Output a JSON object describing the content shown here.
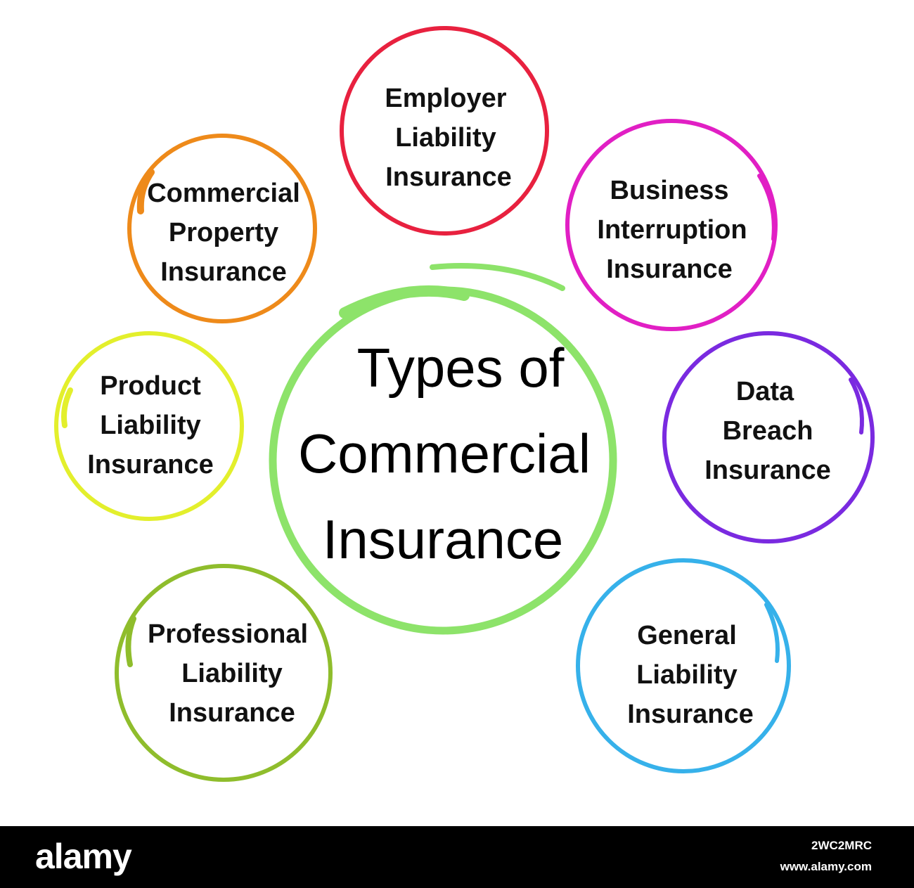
{
  "center": {
    "line1": "Types of",
    "line2": "Commercial",
    "line3": "Insurance",
    "color": "#8de36a"
  },
  "nodes": [
    {
      "id": "employer-liability",
      "lines": [
        "Employer",
        "Liability",
        "Insurance"
      ],
      "color": "#e8213f"
    },
    {
      "id": "business-interruption",
      "lines": [
        "Business",
        "Interruption",
        "Insurance"
      ],
      "color": "#e11fc4"
    },
    {
      "id": "data-breach",
      "lines": [
        "Data",
        "Breach",
        "Insurance"
      ],
      "color": "#7a2ae0"
    },
    {
      "id": "general-liability",
      "lines": [
        "General",
        "Liability",
        "Insurance"
      ],
      "color": "#36b1ea"
    },
    {
      "id": "professional-liability",
      "lines": [
        "Professional",
        "Liability",
        "Insurance"
      ],
      "color": "#8fbd2c"
    },
    {
      "id": "product-liability",
      "lines": [
        "Product",
        "Liability",
        "Insurance"
      ],
      "color": "#e3ef2c"
    },
    {
      "id": "commercial-property",
      "lines": [
        "Commercial",
        "Property",
        "Insurance"
      ],
      "color": "#ee8a1a"
    }
  ],
  "footer": {
    "brand": "alamy",
    "image_id": "2WC2MRC",
    "site": "www.alamy.com"
  }
}
